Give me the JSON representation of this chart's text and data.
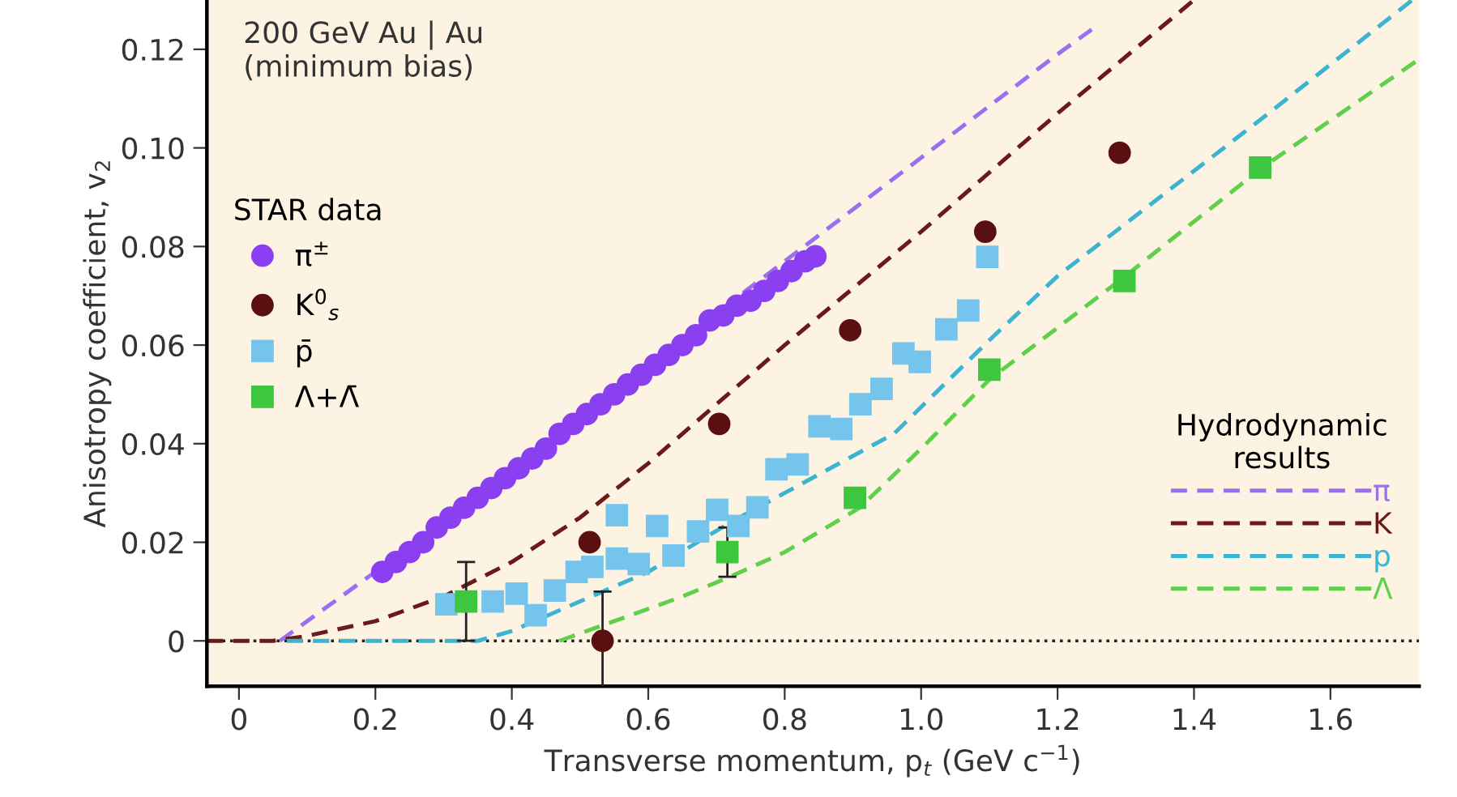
{
  "chart_data": {
    "type": "scatter",
    "xlabel": "Transverse momentum, p$_{t}$ (GeV c$^{−1}$)",
    "ylabel": "Anisotropy coefficient, v$_{2}$",
    "annotations": [
      "200 GeV Au | Au\n(minimum bias)"
    ],
    "legend_title": [
      "STAR data",
      "Hydrodynamic\nresults"
    ],
    "legend": [
      "top left",
      "bottom right"
    ],
    "xlim": [
      -0.047,
      1.73
    ],
    "ylim": [
      -0.0092,
      0.13
    ],
    "xticks": [
      0,
      0.2,
      0.4,
      0.6,
      0.8,
      {
        "value": 1.0,
        "label": "1.0"
      },
      1.2,
      1.4,
      1.6
    ],
    "yticks": [
      0,
      0.02,
      0.04,
      0.06,
      {
        "value": 0.1,
        "label": "0.10"
      },
      0.08,
      0.12
    ],
    "ref_lines": [
      {
        "axis": "y",
        "value": 0,
        "color": "#222222",
        "line_style": "dotted"
      }
    ],
    "grid": false,
    "series": [
      {
        "name": "π$^{±}$",
        "marker": "circle",
        "color": "#8a3ff0",
        "x": [
          0.21,
          0.23,
          0.25,
          0.27,
          0.29,
          0.31,
          0.33,
          0.35,
          0.37,
          0.39,
          0.41,
          0.43,
          0.45,
          0.47,
          0.49,
          0.51,
          0.53,
          0.55,
          0.57,
          0.59,
          0.61,
          0.63,
          0.65,
          0.67,
          0.69,
          0.71,
          0.73,
          0.75,
          0.77,
          0.79,
          0.81,
          0.83,
          0.845
        ],
        "values": [
          0.014,
          0.016,
          0.018,
          0.02,
          0.023,
          0.025,
          0.027,
          0.029,
          0.031,
          0.033,
          0.035,
          0.037,
          0.039,
          0.042,
          0.044,
          0.046,
          0.048,
          0.05,
          0.052,
          0.054,
          0.056,
          0.058,
          0.06,
          0.062,
          0.065,
          0.066,
          0.068,
          0.069,
          0.071,
          0.073,
          0.075,
          0.077,
          0.078
        ]
      },
      {
        "name": "K$^{0}$$_{s}$",
        "marker": "circle",
        "color": "#5a1010",
        "x": [
          0.514,
          0.533,
          0.704,
          0.896,
          1.094,
          1.291
        ],
        "values": [
          0.02,
          0.0,
          0.044,
          0.063,
          0.083,
          0.099
        ],
        "errors": [
          null,
          0.01,
          null,
          null,
          null,
          null
        ]
      },
      {
        "name": "p̄",
        "marker": "square",
        "color": "#74c4ec",
        "x": [
          0.304,
          0.372,
          0.407,
          0.435,
          0.463,
          0.495,
          0.518,
          0.554,
          0.554,
          0.586,
          0.613,
          0.637,
          0.673,
          0.701,
          0.732,
          0.76,
          0.788,
          0.819,
          0.851,
          0.883,
          0.911,
          0.942,
          0.974,
          0.998,
          1.037,
          1.069,
          1.097
        ],
        "values": [
          0.0074,
          0.008,
          0.0096,
          0.0052,
          0.0102,
          0.014,
          0.015,
          0.0255,
          0.0167,
          0.0156,
          0.0233,
          0.0173,
          0.0222,
          0.0266,
          0.0233,
          0.0271,
          0.0348,
          0.0358,
          0.0435,
          0.043,
          0.048,
          0.0511,
          0.0583,
          0.0566,
          0.0632,
          0.067,
          0.0779
        ]
      },
      {
        "name": "Λ+Λ̄",
        "marker": "square",
        "color": "#3ec63e",
        "x": [
          0.333,
          0.716,
          0.903,
          1.1,
          1.298,
          1.497
        ],
        "values": [
          0.008,
          0.018,
          0.029,
          0.055,
          0.073,
          0.096
        ],
        "errors": [
          0.008,
          0.005,
          null,
          null,
          null,
          null
        ]
      },
      {
        "name": "π",
        "type": "line",
        "line_style": "dashed",
        "color": "#9b6ff0",
        "x": [
          0.06,
          0.1,
          0.15,
          0.2,
          0.4,
          0.6,
          0.8,
          1.0,
          1.2,
          1.25
        ],
        "values": [
          0,
          0.004,
          0.009,
          0.014,
          0.035,
          0.056,
          0.077,
          0.098,
          0.119,
          0.124
        ]
      },
      {
        "name": "K",
        "type": "line",
        "line_style": "dashed",
        "color": "#6b1a1a",
        "x": [
          -0.047,
          0.05,
          0.1,
          0.2,
          0.3,
          0.4,
          0.5,
          0.6,
          0.7,
          0.8,
          1.0,
          1.2,
          1.4
        ],
        "values": [
          0,
          0,
          0.001,
          0.004,
          0.009,
          0.016,
          0.025,
          0.036,
          0.048,
          0.06,
          0.083,
          0.107,
          0.13
        ]
      },
      {
        "name": "p",
        "type": "line",
        "line_style": "dashed",
        "color": "#3ab4d0",
        "x": [
          0.07,
          0.35,
          0.4,
          0.5,
          0.6,
          0.72,
          0.8,
          0.96,
          1.1,
          1.2,
          1.5,
          1.72
        ],
        "values": [
          0,
          0,
          0.002,
          0.008,
          0.014,
          0.024,
          0.03,
          0.042,
          0.061,
          0.074,
          0.106,
          0.13
        ]
      },
      {
        "name": "Λ",
        "type": "line",
        "line_style": "dashed",
        "color": "#5ed04a",
        "x": [
          0.47,
          0.55,
          0.65,
          0.72,
          0.8,
          0.91,
          1.0,
          1.1,
          1.29,
          1.5,
          1.73
        ],
        "values": [
          0,
          0.004,
          0.009,
          0.013,
          0.018,
          0.027,
          0.039,
          0.053,
          0.073,
          0.096,
          0.118
        ]
      }
    ]
  }
}
